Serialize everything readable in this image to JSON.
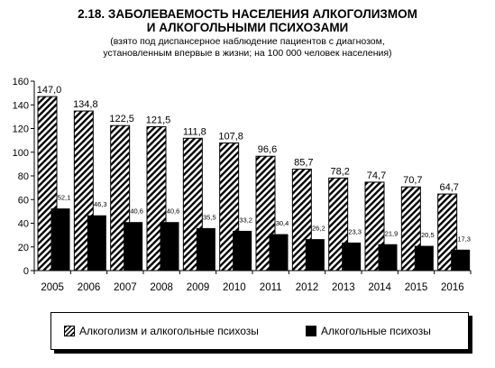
{
  "header": {
    "title_line1": "2.18. ЗАБОЛЕВАЕМОСТЬ НАСЕЛЕНИЯ АЛКОГОЛИЗМОМ",
    "title_line2": "И АЛКОГОЛЬНЫМИ ПСИХОЗАМИ",
    "subtitle_line1": "(взято под диспансерное наблюдение пациентов с диагнозом,",
    "subtitle_line2": "установленным впервые в жизни; на 100 000 человек населения)"
  },
  "legend": {
    "item1": "Алкоголизм и алкогольные психозы",
    "item2": "Алкогольные психозы"
  },
  "chart_data": {
    "type": "bar",
    "title": "2.18. ЗАБОЛЕВАЕМОСТЬ НАСЕЛЕНИЯ АЛКОГОЛИЗМОМ И АЛКОГОЛЬНЫМИ ПСИХОЗАМИ",
    "categories": [
      "2005",
      "2006",
      "2007",
      "2008",
      "2009",
      "2010",
      "2011",
      "2012",
      "2013",
      "2014",
      "2015",
      "2016"
    ],
    "series": [
      {
        "name": "Алкоголизм и алкогольные психозы",
        "values": [
          147.0,
          134.8,
          122.5,
          121.5,
          111.8,
          107.8,
          96.6,
          85.7,
          78.2,
          74.7,
          70.7,
          64.7
        ],
        "labels": [
          "147,0",
          "134,8",
          "122,5",
          "121,5",
          "111,8",
          "107,8",
          "96,6",
          "85,7",
          "78,2",
          "74,7",
          "70,7",
          "64,7"
        ],
        "fill": "hatched"
      },
      {
        "name": "Алкогольные психозы",
        "values": [
          52.1,
          46.3,
          40.6,
          40.6,
          35.5,
          33.2,
          30.4,
          26.2,
          23.3,
          21.9,
          20.5,
          17.3
        ],
        "labels": [
          "52,1",
          "46,3",
          "40,6",
          "40,6",
          "35,5",
          "33,2",
          "30,4",
          "26,2",
          "23,3",
          "21,9",
          "20,5",
          "17,3"
        ],
        "fill": "solid"
      }
    ],
    "yticks": [
      0,
      20,
      40,
      60,
      80,
      100,
      120,
      140,
      160
    ],
    "ylim": [
      0,
      160
    ],
    "grid": false,
    "legend_position": "bottom",
    "colors": {
      "bar": "#000000",
      "background": "#ffffff"
    }
  }
}
